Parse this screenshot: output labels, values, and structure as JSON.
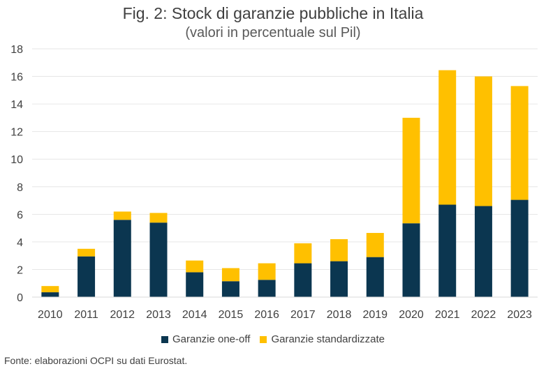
{
  "chart_data": {
    "type": "bar",
    "stacked": true,
    "title": "Fig. 2: Stock di garanzie pubbliche in Italia",
    "subtitle": "(valori in percentuale sul Pil)",
    "categories": [
      "2010",
      "2011",
      "2012",
      "2013",
      "2014",
      "2015",
      "2016",
      "2017",
      "2018",
      "2019",
      "2020",
      "2021",
      "2022",
      "2023"
    ],
    "series": [
      {
        "name": "Garanzie one-off",
        "color": "#0b3650",
        "values": [
          0.35,
          2.95,
          5.6,
          5.4,
          1.8,
          1.15,
          1.25,
          2.45,
          2.6,
          2.9,
          5.35,
          6.7,
          6.6,
          7.05
        ]
      },
      {
        "name": "Garanzie standardizzate",
        "color": "#ffc000",
        "values": [
          0.45,
          0.55,
          0.6,
          0.7,
          0.85,
          0.95,
          1.2,
          1.45,
          1.6,
          1.75,
          7.65,
          9.75,
          9.4,
          8.25
        ]
      }
    ],
    "ylim": [
      0,
      18
    ],
    "yticks": [
      0,
      2,
      4,
      6,
      8,
      10,
      12,
      14,
      16,
      18
    ],
    "grid": true,
    "legend": "bottom",
    "xlabel": "",
    "ylabel": ""
  },
  "source": "Fonte: elaborazioni OCPI su dati Eurostat."
}
